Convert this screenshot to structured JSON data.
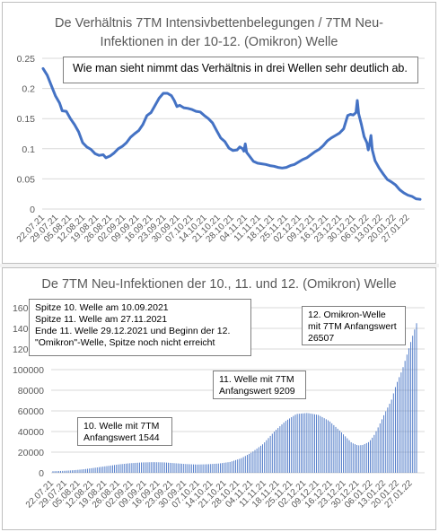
{
  "chart_data": [
    {
      "type": "line",
      "title": "De Verhältnis 7TM Intensivbettenbelegungen / 7TM Neu-Infektionen in der 10-12. (Omikron) Welle",
      "title_lines": [
        "De Verhältnis 7TM Intensivbettenbelegungen / 7TM Neu-",
        "Infektionen in der 10-12. (Omikron) Welle"
      ],
      "annotation": "Wie man sieht nimmt das Verhältnis in drei Wellen sehr deutlich ab.",
      "xlabel": "",
      "ylabel": "",
      "ylim": [
        0,
        0.25
      ],
      "y_ticks": [
        "0",
        "0.05",
        "0.1",
        "0.15",
        "0.2",
        "0.25"
      ],
      "y_tick_values": [
        0,
        0.05,
        0.1,
        0.15,
        0.2,
        0.25
      ],
      "x_ticks": [
        "22.07.21",
        "29.07.21",
        "05.08.21",
        "12.08.21",
        "19.08.21",
        "26.08.21",
        "02.09.21",
        "09.09.21",
        "16.09.21",
        "23.09.21",
        "30.09.21",
        "07.10.21",
        "14.10.21",
        "21.10.21",
        "28.10.21",
        "04.11.21",
        "11.11.21",
        "18.11.21",
        "25.11.21",
        "02.12.21",
        "09.12.21",
        "16.12.21",
        "23.12.21",
        "30.12.21",
        "06.01.22",
        "13.01.22",
        "20.01.22",
        "27.01.22"
      ],
      "grid": true,
      "line_color": "#4472c4",
      "series_points": [
        [
          0,
          0.233
        ],
        [
          3,
          0.222
        ],
        [
          6,
          0.205
        ],
        [
          9,
          0.188
        ],
        [
          12,
          0.176
        ],
        [
          14,
          0.163
        ],
        [
          17,
          0.162
        ],
        [
          20,
          0.15
        ],
        [
          23,
          0.14
        ],
        [
          26,
          0.128
        ],
        [
          29,
          0.11
        ],
        [
          32,
          0.103
        ],
        [
          35,
          0.099
        ],
        [
          38,
          0.092
        ],
        [
          41,
          0.089
        ],
        [
          44,
          0.09
        ],
        [
          46,
          0.085
        ],
        [
          49,
          0.088
        ],
        [
          52,
          0.093
        ],
        [
          55,
          0.1
        ],
        [
          58,
          0.104
        ],
        [
          61,
          0.11
        ],
        [
          64,
          0.119
        ],
        [
          67,
          0.125
        ],
        [
          70,
          0.13
        ],
        [
          73,
          0.14
        ],
        [
          76,
          0.155
        ],
        [
          79,
          0.16
        ],
        [
          82,
          0.172
        ],
        [
          85,
          0.184
        ],
        [
          88,
          0.192
        ],
        [
          91,
          0.192
        ],
        [
          94,
          0.188
        ],
        [
          96,
          0.18
        ],
        [
          98,
          0.17
        ],
        [
          100,
          0.172
        ],
        [
          103,
          0.168
        ],
        [
          106,
          0.167
        ],
        [
          109,
          0.165
        ],
        [
          112,
          0.162
        ],
        [
          115,
          0.161
        ],
        [
          118,
          0.155
        ],
        [
          121,
          0.15
        ],
        [
          124,
          0.143
        ],
        [
          127,
          0.13
        ],
        [
          130,
          0.118
        ],
        [
          133,
          0.112
        ],
        [
          136,
          0.101
        ],
        [
          139,
          0.097
        ],
        [
          142,
          0.098
        ],
        [
          144,
          0.103
        ],
        [
          146,
          0.1
        ],
        [
          147,
          0.096
        ],
        [
          148,
          0.108
        ],
        [
          149,
          0.094
        ],
        [
          151,
          0.088
        ],
        [
          154,
          0.079
        ],
        [
          157,
          0.076
        ],
        [
          160,
          0.075
        ],
        [
          163,
          0.074
        ],
        [
          166,
          0.072
        ],
        [
          169,
          0.071
        ],
        [
          172,
          0.069
        ],
        [
          175,
          0.068
        ],
        [
          178,
          0.069
        ],
        [
          181,
          0.072
        ],
        [
          184,
          0.074
        ],
        [
          187,
          0.078
        ],
        [
          190,
          0.082
        ],
        [
          193,
          0.085
        ],
        [
          196,
          0.09
        ],
        [
          199,
          0.095
        ],
        [
          202,
          0.099
        ],
        [
          205,
          0.105
        ],
        [
          208,
          0.113
        ],
        [
          211,
          0.118
        ],
        [
          214,
          0.122
        ],
        [
          217,
          0.126
        ],
        [
          220,
          0.133
        ],
        [
          223,
          0.155
        ],
        [
          225,
          0.157
        ],
        [
          227,
          0.156
        ],
        [
          229,
          0.16
        ],
        [
          230,
          0.18
        ],
        [
          231,
          0.158
        ],
        [
          233,
          0.14
        ],
        [
          235,
          0.12
        ],
        [
          237,
          0.11
        ],
        [
          238,
          0.098
        ],
        [
          239,
          0.107
        ],
        [
          240,
          0.122
        ],
        [
          241,
          0.098
        ],
        [
          243,
          0.08
        ],
        [
          246,
          0.068
        ],
        [
          249,
          0.058
        ],
        [
          252,
          0.049
        ],
        [
          255,
          0.045
        ],
        [
          258,
          0.04
        ],
        [
          261,
          0.032
        ],
        [
          264,
          0.027
        ],
        [
          267,
          0.023
        ],
        [
          270,
          0.021
        ],
        [
          273,
          0.017
        ],
        [
          276,
          0.016
        ]
      ]
    },
    {
      "type": "bar",
      "title": "De 7TM Neu-Infektionen der 10., 11. und 12. (Omikron) Welle",
      "xlabel": "",
      "ylabel": "",
      "ylim": [
        0,
        160000
      ],
      "y_ticks": [
        "0",
        "20000",
        "40000",
        "60000",
        "80000",
        "100000",
        "120000",
        "140000",
        "160000"
      ],
      "y_tick_values": [
        0,
        20000,
        40000,
        60000,
        80000,
        100000,
        120000,
        140000,
        160000
      ],
      "x_ticks": [
        "22.07.21",
        "29.07.21",
        "05.08.21",
        "12.08.21",
        "19.08.21",
        "26.08.21",
        "02.09.21",
        "09.09.21",
        "16.09.21",
        "23.09.21",
        "30.09.21",
        "07.10.21",
        "14.10.21",
        "21.10.21",
        "28.10.21",
        "04.11.21",
        "11.11.21",
        "18.11.21",
        "25.11.21",
        "02.12.21",
        "09.12.21",
        "16.12.21",
        "23.12.21",
        "30.12.21",
        "06.01.22",
        "13.01.22",
        "20.01.22",
        "27.01.22"
      ],
      "grid": true,
      "bar_color": "#4472c4",
      "bar_count": 190,
      "series_points": [
        [
          0,
          1544
        ],
        [
          7,
          1900
        ],
        [
          14,
          2600
        ],
        [
          21,
          3700
        ],
        [
          28,
          5200
        ],
        [
          35,
          6700
        ],
        [
          42,
          8200
        ],
        [
          49,
          9300
        ],
        [
          56,
          10000
        ],
        [
          63,
          10300
        ],
        [
          70,
          10100
        ],
        [
          77,
          9300
        ],
        [
          84,
          8500
        ],
        [
          91,
          8000
        ],
        [
          98,
          8300
        ],
        [
          105,
          9000
        ],
        [
          112,
          10500
        ],
        [
          119,
          14000
        ],
        [
          126,
          20000
        ],
        [
          133,
          28000
        ],
        [
          140,
          40000
        ],
        [
          147,
          50000
        ],
        [
          154,
          57000
        ],
        [
          161,
          58000
        ],
        [
          168,
          56000
        ],
        [
          175,
          50000
        ],
        [
          182,
          40000
        ],
        [
          189,
          29000
        ],
        [
          193,
          26507
        ],
        [
          196,
          27000
        ],
        [
          200,
          30000
        ],
        [
          203,
          36000
        ],
        [
          206,
          45000
        ],
        [
          210,
          58000
        ],
        [
          214,
          70000
        ],
        [
          217,
          85000
        ],
        [
          221,
          100000
        ],
        [
          224,
          115000
        ],
        [
          227,
          130000
        ],
        [
          230,
          145000
        ]
      ],
      "annotations": [
        {
          "lines": [
            "Spitze 10. Welle am 10.09.2021",
            "Spitze 11. Welle am 27.11.2021",
            "Ende 11. Welle 29.12.2021 und Beginn der 12.",
            "\"Omikron\"-Welle, Spitze noch nicht erreicht"
          ]
        },
        {
          "lines": [
            "12. Omikron-Welle",
            "mit 7TM Anfangswert",
            "26507"
          ]
        },
        {
          "lines": [
            "11. Welle mit 7TM",
            "Anfangswert 9209"
          ]
        },
        {
          "lines": [
            "10. Welle mit 7TM",
            "Anfangswert 1544"
          ]
        }
      ]
    }
  ]
}
